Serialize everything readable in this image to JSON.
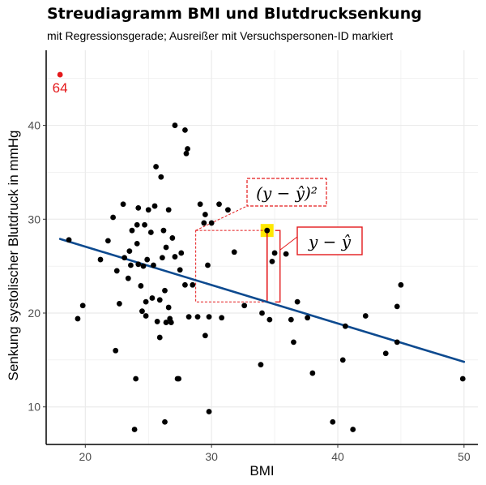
{
  "chart_data": {
    "type": "scatter",
    "title": "Streudiagramm BMI und Blutdrucksenkung",
    "subtitle": "mit Regressionsgerade; Ausreißer mit Versuchspersonen-ID markiert",
    "xlabel": "BMI",
    "ylabel": "Senkung systolischer Blutdruck in mmHg",
    "xlim": [
      16.9,
      51.1
    ],
    "ylim": [
      6.0,
      48.0
    ],
    "xticks": [
      20,
      30,
      40,
      50
    ],
    "yticks": [
      10,
      20,
      30,
      40
    ],
    "grid": true,
    "points": [
      {
        "x": 18.0,
        "y": 45.4,
        "label": "64",
        "outlier": true
      },
      {
        "x": 18.7,
        "y": 27.8
      },
      {
        "x": 19.4,
        "y": 19.4
      },
      {
        "x": 19.8,
        "y": 20.8
      },
      {
        "x": 21.2,
        "y": 25.7
      },
      {
        "x": 21.8,
        "y": 27.7
      },
      {
        "x": 22.2,
        "y": 30.2
      },
      {
        "x": 22.4,
        "y": 16.0
      },
      {
        "x": 22.5,
        "y": 24.5
      },
      {
        "x": 22.7,
        "y": 21.0
      },
      {
        "x": 23.0,
        "y": 31.6
      },
      {
        "x": 23.1,
        "y": 25.9
      },
      {
        "x": 23.4,
        "y": 23.7
      },
      {
        "x": 23.5,
        "y": 26.6
      },
      {
        "x": 23.6,
        "y": 25.1
      },
      {
        "x": 23.7,
        "y": 28.8
      },
      {
        "x": 23.9,
        "y": 7.6
      },
      {
        "x": 24.0,
        "y": 13.0
      },
      {
        "x": 24.1,
        "y": 27.4
      },
      {
        "x": 24.1,
        "y": 29.4
      },
      {
        "x": 24.2,
        "y": 31.2
      },
      {
        "x": 24.2,
        "y": 25.2
      },
      {
        "x": 24.4,
        "y": 22.9
      },
      {
        "x": 24.5,
        "y": 20.2
      },
      {
        "x": 24.6,
        "y": 25.0
      },
      {
        "x": 24.7,
        "y": 29.4
      },
      {
        "x": 24.8,
        "y": 19.7
      },
      {
        "x": 24.8,
        "y": 21.2
      },
      {
        "x": 24.9,
        "y": 25.7
      },
      {
        "x": 25.0,
        "y": 31.0
      },
      {
        "x": 25.2,
        "y": 28.6
      },
      {
        "x": 25.3,
        "y": 21.6
      },
      {
        "x": 25.4,
        "y": 25.1
      },
      {
        "x": 25.5,
        "y": 31.4
      },
      {
        "x": 25.6,
        "y": 35.6
      },
      {
        "x": 25.7,
        "y": 19.1
      },
      {
        "x": 25.9,
        "y": 21.4
      },
      {
        "x": 25.9,
        "y": 17.4
      },
      {
        "x": 26.0,
        "y": 34.5
      },
      {
        "x": 26.1,
        "y": 25.9
      },
      {
        "x": 26.2,
        "y": 28.8
      },
      {
        "x": 26.3,
        "y": 22.4
      },
      {
        "x": 26.3,
        "y": 8.4
      },
      {
        "x": 26.4,
        "y": 19.0
      },
      {
        "x": 26.4,
        "y": 27.0
      },
      {
        "x": 26.6,
        "y": 31.0
      },
      {
        "x": 26.6,
        "y": 20.6
      },
      {
        "x": 26.7,
        "y": 19.4
      },
      {
        "x": 26.8,
        "y": 19.0
      },
      {
        "x": 26.9,
        "y": 28.0
      },
      {
        "x": 27.1,
        "y": 40.0
      },
      {
        "x": 27.1,
        "y": 26.0
      },
      {
        "x": 27.3,
        "y": 13.0
      },
      {
        "x": 27.4,
        "y": 13.0
      },
      {
        "x": 27.5,
        "y": 24.6
      },
      {
        "x": 27.6,
        "y": 26.4
      },
      {
        "x": 27.9,
        "y": 39.5
      },
      {
        "x": 27.9,
        "y": 23.0
      },
      {
        "x": 28.0,
        "y": 37.0
      },
      {
        "x": 28.1,
        "y": 37.5
      },
      {
        "x": 28.2,
        "y": 19.6
      },
      {
        "x": 28.5,
        "y": 23.0
      },
      {
        "x": 28.9,
        "y": 19.6
      },
      {
        "x": 29.1,
        "y": 31.6
      },
      {
        "x": 29.4,
        "y": 29.6
      },
      {
        "x": 29.5,
        "y": 30.5
      },
      {
        "x": 29.5,
        "y": 17.6
      },
      {
        "x": 29.7,
        "y": 25.1
      },
      {
        "x": 29.8,
        "y": 19.6
      },
      {
        "x": 29.8,
        "y": 9.5
      },
      {
        "x": 30.0,
        "y": 29.6
      },
      {
        "x": 30.6,
        "y": 31.6
      },
      {
        "x": 30.8,
        "y": 19.5
      },
      {
        "x": 31.3,
        "y": 31.0
      },
      {
        "x": 31.8,
        "y": 26.5
      },
      {
        "x": 32.6,
        "y": 20.8
      },
      {
        "x": 33.9,
        "y": 14.5
      },
      {
        "x": 34.0,
        "y": 20.0
      },
      {
        "x": 34.4,
        "y": 28.8,
        "highlighted": true
      },
      {
        "x": 34.6,
        "y": 19.3
      },
      {
        "x": 34.8,
        "y": 25.5
      },
      {
        "x": 35.0,
        "y": 26.4
      },
      {
        "x": 35.9,
        "y": 26.3
      },
      {
        "x": 36.3,
        "y": 19.3
      },
      {
        "x": 36.5,
        "y": 16.9
      },
      {
        "x": 36.8,
        "y": 21.2
      },
      {
        "x": 37.6,
        "y": 19.5
      },
      {
        "x": 38.0,
        "y": 13.6
      },
      {
        "x": 39.6,
        "y": 8.4
      },
      {
        "x": 40.4,
        "y": 15.0
      },
      {
        "x": 40.6,
        "y": 18.6
      },
      {
        "x": 41.2,
        "y": 7.6
      },
      {
        "x": 42.2,
        "y": 19.7
      },
      {
        "x": 43.8,
        "y": 15.7
      },
      {
        "x": 44.7,
        "y": 20.7
      },
      {
        "x": 44.7,
        "y": 16.9
      },
      {
        "x": 45.0,
        "y": 23.0
      },
      {
        "x": 49.9,
        "y": 13.0
      }
    ],
    "regression_line": {
      "x": [
        18.0,
        50.0
      ],
      "y": [
        27.9,
        14.8
      ],
      "color": "#0d4a8f"
    },
    "annotations": {
      "squared_residual_label": "(y − ŷ)²",
      "residual_label": "y − ŷ",
      "color": "#e41a1c",
      "highlight_color": "#ffe800"
    },
    "colors": {
      "points": "#000000",
      "outlier": "#e41a1c",
      "grid": "#ebebeb",
      "axis": "#000000"
    }
  }
}
